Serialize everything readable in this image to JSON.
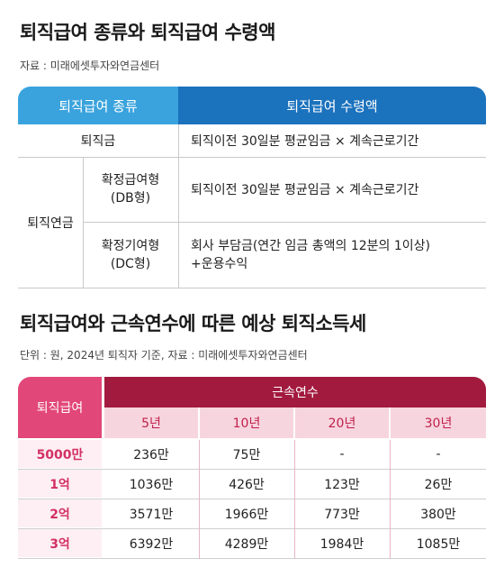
{
  "section1": {
    "title": "퇴직급여 종류와 퇴직급여 수령액",
    "source": "자료 : 미래에셋투자와연금센터",
    "header": {
      "type": "퇴직급여 종류",
      "amount": "퇴직급여 수령액"
    },
    "rows": {
      "lump": {
        "label": "퇴직금",
        "formula": "퇴직이전 30일분 평균임금 × 계속근로기간"
      },
      "pension": {
        "label": "퇴직연금",
        "db": {
          "label_line1": "확정급여형",
          "label_line2": "(DB형)",
          "formula": "퇴직이전 30일분 평균임금 × 계속근로기간"
        },
        "dc": {
          "label_line1": "확정기여형",
          "label_line2": "(DC형)",
          "formula_line1": "회사 부담금(연간 임금 총액의 12분의 1이상)",
          "formula_line2": "+운용수익"
        }
      }
    }
  },
  "section2": {
    "title": "퇴직급여와 근속연수에 따른 예상 퇴직소득세",
    "source": "단위 : 원, 2024년 퇴직자 기준, 자료 : 미래에셋투자와연금센터",
    "header_left": "퇴직급여",
    "header_top": "근속연수",
    "years": [
      "5년",
      "10년",
      "20년",
      "30년"
    ],
    "rows": [
      {
        "label": "5000만",
        "values": [
          "236만",
          "75만",
          "-",
          "-"
        ]
      },
      {
        "label": "1억",
        "values": [
          "1036만",
          "426만",
          "123만",
          "26만"
        ]
      },
      {
        "label": "2억",
        "values": [
          "3571만",
          "1966만",
          "773만",
          "380만"
        ]
      },
      {
        "label": "3억",
        "values": [
          "6392만",
          "4289만",
          "1984만",
          "1085만"
        ]
      }
    ]
  }
}
